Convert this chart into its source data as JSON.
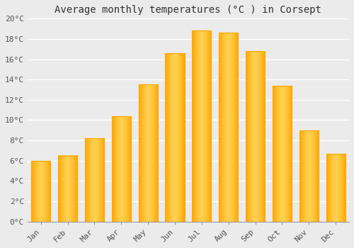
{
  "title": "Average monthly temperatures (°C ) in Corsept",
  "months": [
    "Jan",
    "Feb",
    "Mar",
    "Apr",
    "May",
    "Jun",
    "Jul",
    "Aug",
    "Sep",
    "Oct",
    "Nov",
    "Dec"
  ],
  "values": [
    6.0,
    6.5,
    8.2,
    10.4,
    13.5,
    16.6,
    18.8,
    18.6,
    16.8,
    13.4,
    9.0,
    6.7
  ],
  "bar_color_center": "#FFD050",
  "bar_color_edge": "#FFA500",
  "background_color": "#EBEBEB",
  "grid_color": "#FFFFFF",
  "ylim": [
    0,
    20
  ],
  "yticks": [
    0,
    2,
    4,
    6,
    8,
    10,
    12,
    14,
    16,
    18,
    20
  ],
  "title_fontsize": 10,
  "tick_fontsize": 8,
  "font_family": "monospace"
}
